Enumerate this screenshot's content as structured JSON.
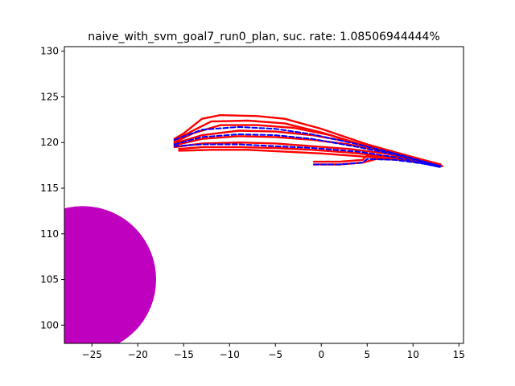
{
  "chart_data": {
    "type": "line",
    "title": "naive_with_svm_goal7_run0_plan, suc. rate: 1.08506944444%",
    "xlabel": "",
    "ylabel": "",
    "xlim": [
      -28,
      15.5
    ],
    "ylim": [
      98,
      130.5
    ],
    "xticks": [
      -25,
      -20,
      -15,
      -10,
      -5,
      0,
      5,
      10,
      15
    ],
    "yticks": [
      100,
      105,
      110,
      115,
      120,
      125,
      130
    ],
    "xtick_labels": [
      "−25",
      "−20",
      "−15",
      "−10",
      "−5",
      "0",
      "5",
      "10",
      "15"
    ],
    "ytick_labels": [
      "100",
      "105",
      "110",
      "115",
      "120",
      "125",
      "130"
    ],
    "grid": false,
    "obstacle": {
      "shape": "circle",
      "center": [
        -26,
        105
      ],
      "radius": 8,
      "color": "#bf00bf"
    },
    "series": [
      {
        "style": "solid",
        "color": "#ff0000",
        "points": [
          [
            -16,
            120.4
          ],
          [
            -15,
            121
          ],
          [
            -13,
            122.6
          ],
          [
            -11,
            123
          ],
          [
            -7,
            122.9
          ],
          [
            -4,
            122.6
          ],
          [
            0,
            121.5
          ],
          [
            5,
            119.8
          ],
          [
            10,
            118.4
          ],
          [
            13,
            117.6
          ]
        ]
      },
      {
        "style": "solid",
        "color": "#ff0000",
        "points": [
          [
            -16,
            120.2
          ],
          [
            -14,
            121.3
          ],
          [
            -12,
            122.3
          ],
          [
            -8,
            122.4
          ],
          [
            -4,
            122.1
          ],
          [
            0,
            121.1
          ],
          [
            5,
            119.6
          ],
          [
            10,
            118.3
          ],
          [
            13,
            117.5
          ]
        ]
      },
      {
        "style": "solid",
        "color": "#ff0000",
        "points": [
          [
            -16,
            120
          ],
          [
            -14,
            121
          ],
          [
            -11,
            121.9
          ],
          [
            -7,
            121.9
          ],
          [
            -3,
            121.6
          ],
          [
            1,
            120.8
          ],
          [
            5,
            119.5
          ],
          [
            10,
            118.2
          ],
          [
            13,
            117.5
          ]
        ]
      },
      {
        "style": "solid",
        "color": "#ff0000",
        "points": [
          [
            -16,
            119.9
          ],
          [
            -13,
            120.8
          ],
          [
            -9,
            121.3
          ],
          [
            -5,
            121.2
          ],
          [
            -1,
            120.8
          ],
          [
            3,
            120.1
          ],
          [
            7,
            119.2
          ],
          [
            11,
            118.1
          ],
          [
            13,
            117.6
          ]
        ]
      },
      {
        "style": "solid",
        "color": "#ff0000",
        "points": [
          [
            -16,
            119.7
          ],
          [
            -13,
            120.4
          ],
          [
            -9,
            120.7
          ],
          [
            -5,
            120.6
          ],
          [
            -1,
            120.3
          ],
          [
            3,
            119.8
          ],
          [
            7,
            119
          ],
          [
            11,
            118
          ],
          [
            13,
            117.5
          ]
        ]
      },
      {
        "style": "solid",
        "color": "#ff0000",
        "points": [
          [
            -16,
            119.5
          ],
          [
            -13,
            119.9
          ],
          [
            -9,
            120
          ],
          [
            -5,
            119.9
          ],
          [
            -1,
            119.6
          ],
          [
            3,
            119.3
          ],
          [
            7,
            118.8
          ],
          [
            11,
            117.9
          ],
          [
            13,
            117.5
          ]
        ]
      },
      {
        "style": "solid",
        "color": "#ff0000",
        "points": [
          [
            -15.5,
            119.3
          ],
          [
            -13,
            119.5
          ],
          [
            -9,
            119.5
          ],
          [
            -5,
            119.4
          ],
          [
            -1,
            119.2
          ],
          [
            3,
            118.9
          ],
          [
            7,
            118.5
          ],
          [
            11,
            117.8
          ],
          [
            13,
            117.4
          ]
        ]
      },
      {
        "style": "solid",
        "color": "#ff0000",
        "points": [
          [
            -15.5,
            119.1
          ],
          [
            -12,
            119.2
          ],
          [
            -8,
            119.2
          ],
          [
            -4,
            119
          ],
          [
            0,
            118.8
          ],
          [
            4,
            118.5
          ],
          [
            8,
            118.2
          ],
          [
            12,
            117.6
          ],
          [
            13,
            117.4
          ]
        ]
      },
      {
        "style": "solid",
        "color": "#ff0000",
        "points": [
          [
            -0.8,
            117.9
          ],
          [
            2,
            117.9
          ],
          [
            4.5,
            118.1
          ],
          [
            5,
            118.6
          ],
          [
            8,
            118.4
          ],
          [
            11,
            117.9
          ],
          [
            13,
            117.5
          ]
        ]
      },
      {
        "style": "solid",
        "color": "#ff0000",
        "points": [
          [
            -0.8,
            117.6
          ],
          [
            2,
            117.6
          ],
          [
            4.5,
            117.8
          ],
          [
            6,
            118.2
          ],
          [
            9,
            118.1
          ],
          [
            12,
            117.7
          ],
          [
            13.2,
            117.4
          ]
        ]
      },
      {
        "style": "dashed",
        "color": "#0000ff",
        "points": [
          [
            -16,
            120.3
          ],
          [
            -13,
            121.4
          ],
          [
            -9,
            121.7
          ],
          [
            -5,
            121.5
          ],
          [
            -1,
            120.9
          ],
          [
            4,
            119.8
          ],
          [
            8,
            118.8
          ],
          [
            13,
            117.4
          ]
        ]
      },
      {
        "style": "dashed",
        "color": "#0000ff",
        "points": [
          [
            -16,
            119.8
          ],
          [
            -13,
            120.6
          ],
          [
            -9,
            120.9
          ],
          [
            -5,
            120.8
          ],
          [
            -1,
            120.4
          ],
          [
            4,
            119.5
          ],
          [
            8,
            118.7
          ],
          [
            13,
            117.4
          ]
        ]
      },
      {
        "style": "dashed",
        "color": "#0000ff",
        "points": [
          [
            -16,
            119.6
          ],
          [
            -13,
            119.8
          ],
          [
            -9,
            119.8
          ],
          [
            -5,
            119.6
          ],
          [
            -1,
            119.4
          ],
          [
            4,
            119
          ],
          [
            8,
            118.4
          ],
          [
            13,
            117.3
          ]
        ]
      },
      {
        "style": "dashed",
        "color": "#0000ff",
        "points": [
          [
            -0.8,
            117.6
          ],
          [
            2,
            117.6
          ],
          [
            4.5,
            117.8
          ],
          [
            5,
            118.2
          ],
          [
            8,
            118.1
          ],
          [
            11,
            117.7
          ],
          [
            13,
            117.3
          ]
        ]
      }
    ]
  }
}
